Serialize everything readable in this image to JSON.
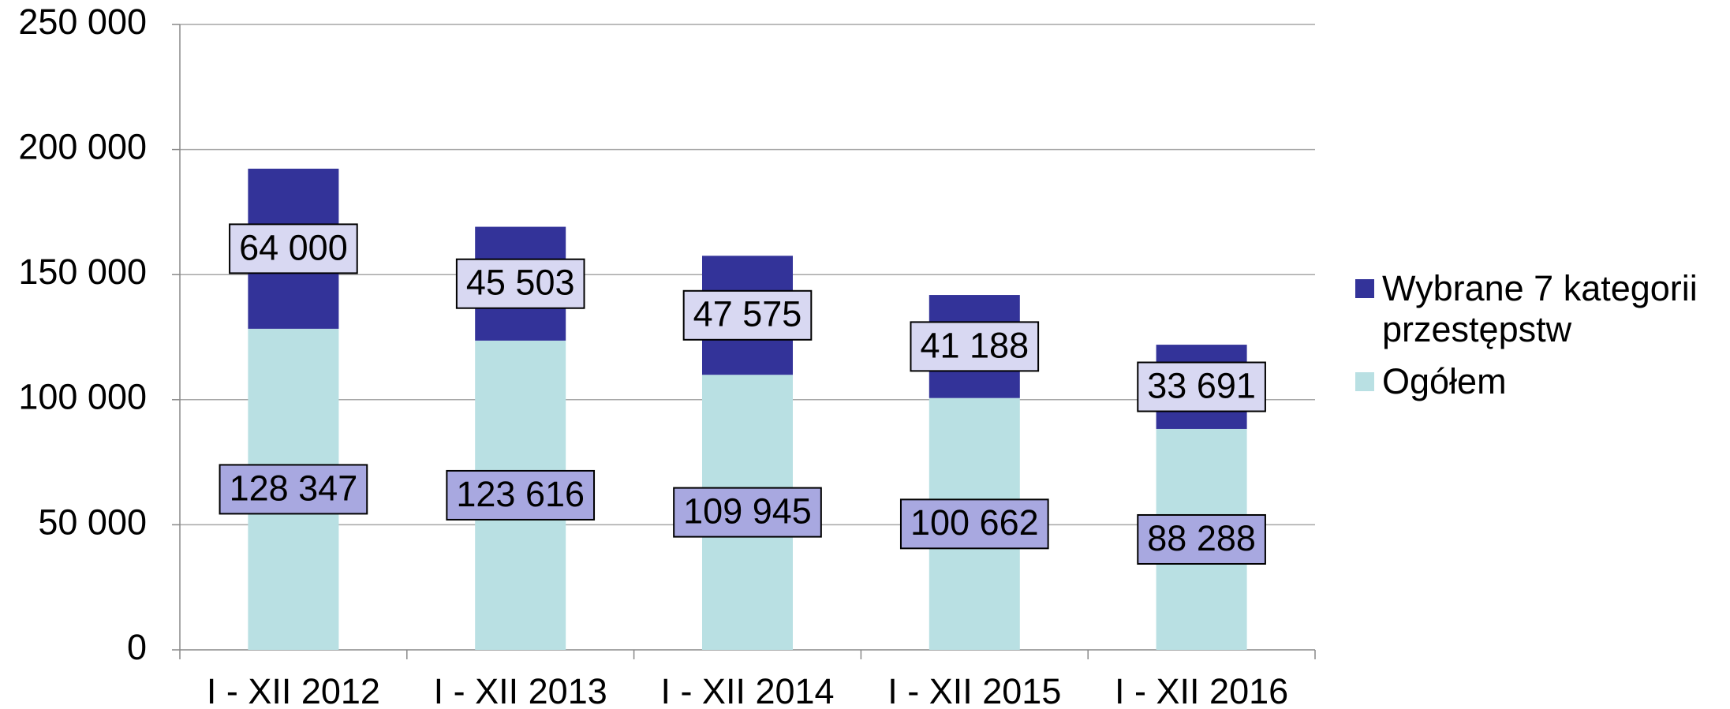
{
  "chart_data": {
    "type": "stacked_bar",
    "categories": [
      "I - XII 2012",
      "I - XII 2013",
      "I - XII 2014",
      "I - XII 2015",
      "I - XII 2016"
    ],
    "series": [
      {
        "name": "Ogółem",
        "color": "#b9e0e3",
        "label_color": "#a8a8e0",
        "values": [
          128347,
          123616,
          109945,
          100662,
          88288
        ],
        "value_labels": [
          "128 347",
          "123 616",
          "109 945",
          "100 662",
          "88 288"
        ]
      },
      {
        "name": "Wybrane 7 kategorii przestępstw",
        "color": "#333399",
        "label_color": "#d8d8f2",
        "values": [
          64000,
          45503,
          47575,
          41188,
          33691
        ],
        "value_labels": [
          "64 000",
          "45 503",
          "47 575",
          "41 188",
          "33 691"
        ]
      }
    ],
    "ylim": [
      0,
      250000
    ],
    "yticks": [
      {
        "value": 0,
        "label": "0"
      },
      {
        "value": 50000,
        "label": "50 000"
      },
      {
        "value": 100000,
        "label": "100 000"
      },
      {
        "value": 150000,
        "label": "150 000"
      },
      {
        "value": 200000,
        "label": "200 000"
      },
      {
        "value": 250000,
        "label": "250 000"
      }
    ],
    "grid": true,
    "legend": "right"
  }
}
